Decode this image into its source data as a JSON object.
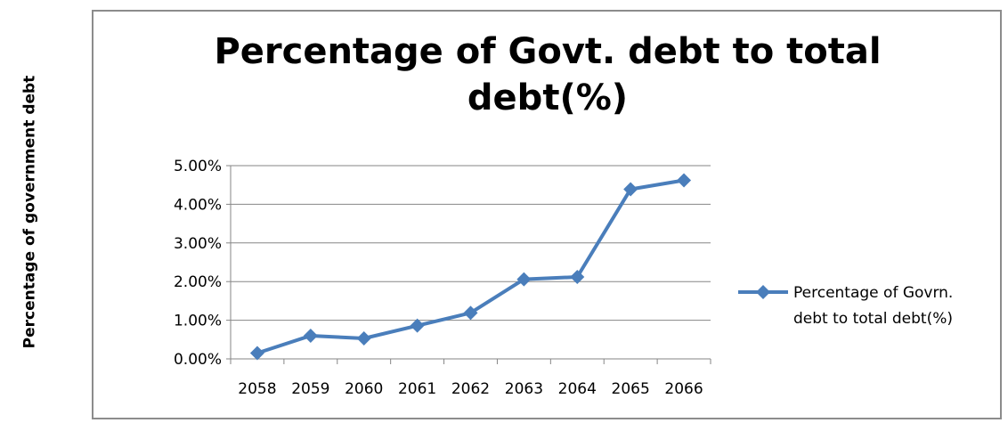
{
  "page": {
    "outer_ylabel": "Percentage of government debt"
  },
  "chart_data": {
    "type": "line",
    "title_lines": [
      "Percentage of Govt. debt to total",
      "debt(%)"
    ],
    "categories": [
      "2058",
      "2059",
      "2060",
      "2061",
      "2062",
      "2063",
      "2064",
      "2065",
      "2066"
    ],
    "series": [
      {
        "name": "Percentage of Govrn. debt to total debt(%)",
        "legend_lines": [
          "Percentage of Govrn.",
          "debt to total debt(%)"
        ],
        "values": [
          0.0015,
          0.006,
          0.0053,
          0.0086,
          0.0119,
          0.0206,
          0.0212,
          0.0439,
          0.0462
        ],
        "color": "#4a7ebb"
      }
    ],
    "y_ticks": [
      "0.00%",
      "1.00%",
      "2.00%",
      "3.00%",
      "4.00%",
      "5.00%"
    ],
    "ylim": [
      0,
      0.05
    ],
    "grid": true,
    "legend_position": "right",
    "gridline_color": "#868686",
    "frame_color": "#8c8c8c"
  }
}
